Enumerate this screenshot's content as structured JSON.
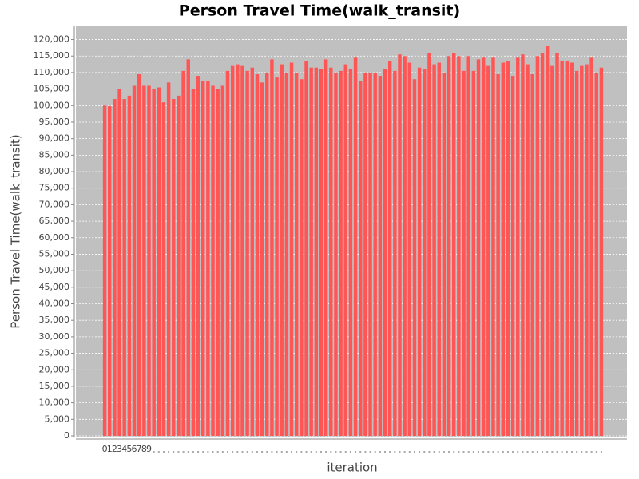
{
  "chart_data": {
    "type": "bar",
    "title": "Person Travel Time(walk_transit)",
    "x_label": "iteration",
    "y_label": "Person Travel Time(walk_transit)",
    "color": "#ff5555",
    "grid": true,
    "categories": [
      "0",
      "1",
      "2",
      "3",
      "4",
      "5",
      "6",
      "7",
      "8",
      "9",
      null,
      null,
      null,
      null,
      null,
      null,
      null,
      null,
      null,
      null,
      null,
      null,
      null,
      null,
      null,
      null,
      null,
      null,
      null,
      null,
      null,
      null,
      null,
      null,
      null,
      null,
      null,
      null,
      null,
      null,
      null,
      null,
      null,
      null,
      null,
      null,
      null,
      null,
      null,
      null,
      null,
      null,
      null,
      null,
      null,
      null,
      null,
      null,
      null,
      null,
      null,
      null,
      null,
      null,
      null,
      null,
      null,
      null,
      null,
      null,
      null,
      null,
      null,
      null,
      null,
      null,
      null,
      null,
      null,
      null,
      null,
      null,
      null,
      null,
      null,
      null,
      null,
      null,
      null,
      null,
      null,
      null,
      null,
      null,
      null,
      null,
      null,
      null,
      null,
      null,
      null,
      null
    ],
    "values": [
      100000,
      99800,
      102000,
      105000,
      102000,
      103000,
      106000,
      109500,
      106000,
      106000,
      105000,
      105500,
      101000,
      107000,
      102000,
      103000,
      110500,
      114000,
      105000,
      109000,
      107500,
      107500,
      106000,
      105000,
      106000,
      110500,
      112000,
      112500,
      112000,
      110500,
      111500,
      109500,
      107000,
      110000,
      114000,
      108500,
      112500,
      110000,
      113000,
      110000,
      108000,
      113500,
      111500,
      111500,
      111000,
      114000,
      111500,
      110000,
      110500,
      112500,
      111000,
      114500,
      107500,
      110000,
      110000,
      110000,
      109000,
      111000,
      113500,
      110500,
      115500,
      115000,
      113000,
      108000,
      111500,
      111000,
      116000,
      112500,
      113000,
      110000,
      115000,
      116000,
      115000,
      110500,
      115000,
      110500,
      114000,
      114500,
      112000,
      114500,
      109500,
      113000,
      113500,
      109000,
      114500,
      115500,
      112500,
      109500,
      115000,
      116000,
      118000,
      112000,
      116000,
      113500,
      113500,
      113000,
      110500,
      112000,
      112500,
      114500,
      110000,
      111500
    ],
    "ylim": [
      0,
      124000
    ],
    "yticks": [
      0,
      {
        "value": 5000,
        "label": "5,000"
      },
      {
        "value": 10000,
        "label": "10,000"
      },
      {
        "value": 15000,
        "label": "15,000"
      },
      {
        "value": 20000,
        "label": "20,000"
      },
      {
        "value": 25000,
        "label": "25,000"
      },
      {
        "value": 30000,
        "label": "30,000"
      },
      {
        "value": 35000,
        "label": "35,000"
      },
      {
        "value": 40000,
        "label": "40,000"
      },
      {
        "value": 45000,
        "label": "45,000"
      },
      {
        "value": 50000,
        "label": "50,000"
      },
      {
        "value": 55000,
        "label": "55,000"
      },
      {
        "value": 60000,
        "label": "60,000"
      },
      {
        "value": 65000,
        "label": "65,000"
      },
      {
        "value": 70000,
        "label": "70,000"
      },
      {
        "value": 75000,
        "label": "75,000"
      },
      {
        "value": 80000,
        "label": "80,000"
      },
      {
        "value": 85000,
        "label": "85,000"
      },
      {
        "value": 90000,
        "label": "90,000"
      },
      {
        "value": 95000,
        "label": "95,000"
      },
      {
        "value": 100000,
        "label": "100,000"
      },
      {
        "value": 105000,
        "label": "105,000"
      },
      {
        "value": 110000,
        "label": "110,000"
      },
      {
        "value": 115000,
        "label": "115,000"
      },
      {
        "value": 120000,
        "label": "120,000"
      }
    ]
  }
}
